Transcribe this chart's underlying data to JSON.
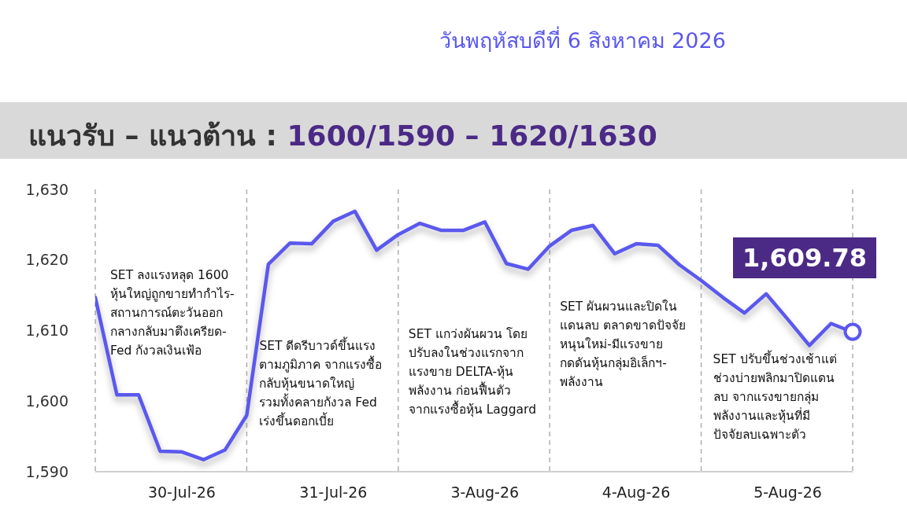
{
  "chart_data": {
    "type": "line",
    "title": "แนวรับ – แนวต้าน : 1600/1590 – 1620/1630",
    "subtitle": "วันพฤหัสบดีที่ 6 สิงหาคม 2026",
    "categories": [
      null,
      null,
      null,
      null,
      "30-Jul-26",
      null,
      null,
      null,
      null,
      null,
      null,
      "31-Jul-26",
      null,
      null,
      null,
      null,
      null,
      null,
      "3-Aug-26",
      null,
      null,
      null,
      null,
      null,
      null,
      "4-Aug-26",
      null,
      null,
      null,
      null,
      null,
      null,
      "5-Aug-26",
      null,
      null,
      null
    ],
    "series": [
      {
        "color": "#5a58ee",
        "values": [
          1614.7,
          1600.9,
          1600.9,
          1592.9,
          1592.8,
          1591.7,
          1593.1,
          1598.0,
          1619.4,
          1622.4,
          1622.3,
          1625.5,
          1626.9,
          1621.4,
          1623.6,
          1625.2,
          1624.2,
          1624.2,
          1625.4,
          1619.5,
          1618.7,
          1622.0,
          1624.2,
          1624.9,
          1620.9,
          1622.3,
          1622.1,
          1619.3,
          1617.1,
          1614.7,
          1612.5,
          1615.2,
          1611.6,
          1607.9,
          1611.0,
          1609.78
        ]
      }
    ],
    "ylim": [
      1590,
      1630
    ],
    "yticks": [
      {
        "value": 1590,
        "label": "1,590"
      },
      {
        "value": 1600,
        "label": "1,600"
      },
      {
        "value": 1610,
        "label": "1,610"
      },
      {
        "value": 1620,
        "label": "1,620"
      },
      {
        "value": 1630,
        "label": "1,630"
      }
    ],
    "annotations": [
      "SET ลงแรงหลุด 1600\nหุ้นใหญ่ถูกขายทำกำไร-\nสถานการณ์ตะวันออก\nกลางกลับมาตึงเครียด-\nFed กังวลเงินเฟ้อ",
      "SET ดีดรีบาวด์ขึ้นแรง\nตามภูมิภาค จากแรงซื้อ\nกลับหุ้นขนาดใหญ่\nรวมทั้งคลายกังวล Fed\nเร่งขึ้นดอกเบี้ย",
      "SET แกว่งผันผวน โดย\nปรับลงในช่วงแรกจาก\nแรงขาย DELTA-หุ้น\nพลังงาน ก่อนฟื้นตัว\nจากแรงซื้อหุ้น Laggard",
      "SET ผันผวนและปิดใน\nแดนลบ ตลาดขาดปัจจัย\nหนุนใหม่-มีแรงขาย\nกดดันหุ้นกลุ่มอิเล็กฯ-\nพลังงาน",
      "SET ปรับขึ้นช่วงเช้าแต่\nช่วงบ่ายพลิกมาปิดแดน\nลบ จากแรงขายกลุ่ม\nพลังงานและหุ้นที่มี\nปัจจัยลบเฉพาะตัว",
      {
        "text": "1,609.78",
        "y": 1609.78
      }
    ],
    "marker": "none",
    "line_style": "solid",
    "grid": "x",
    "legend": false
  }
}
